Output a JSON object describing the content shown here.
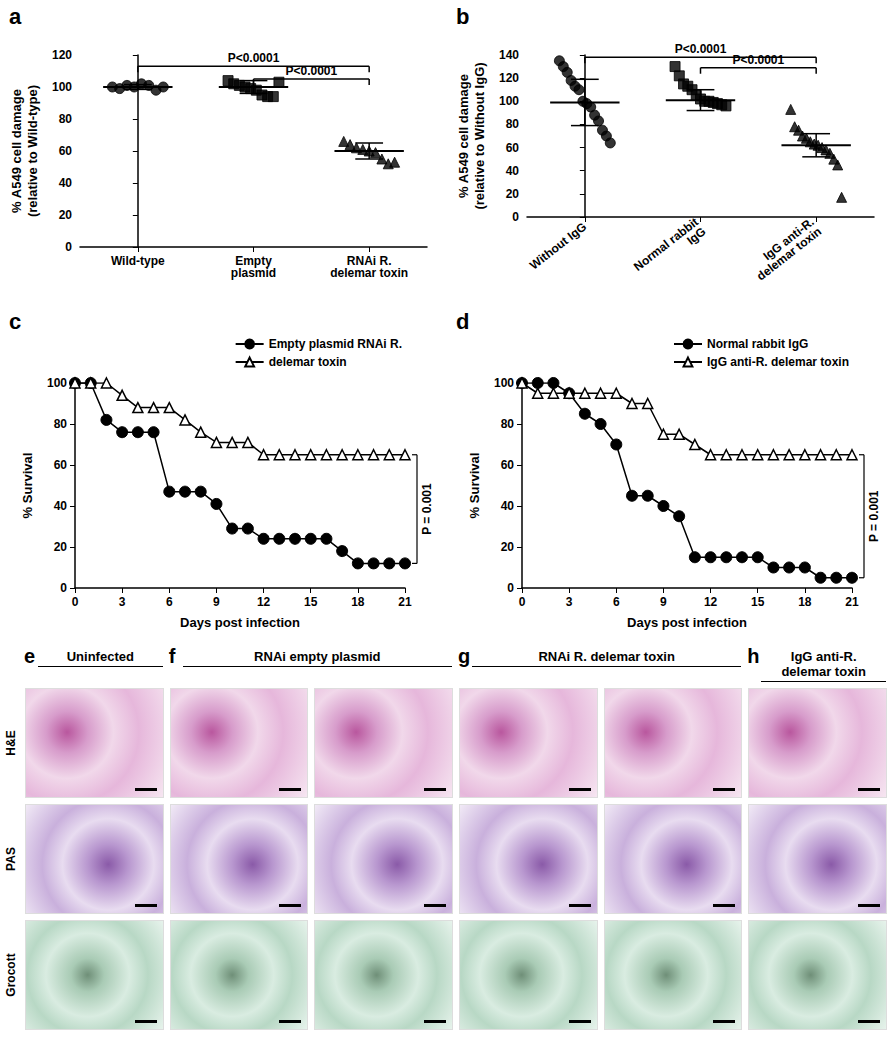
{
  "chart_data": [
    {
      "type": "scatter",
      "title": "a",
      "categories": [
        "Wild-type",
        "Empty\nplasmid",
        "RNAi R.\ndelemar toxin"
      ],
      "values": [
        [
          100,
          99,
          101,
          100,
          102,
          101,
          98,
          100
        ],
        [
          104,
          102,
          101,
          100,
          99,
          98,
          95,
          94,
          94,
          103
        ],
        [
          66,
          64,
          62,
          61,
          60,
          59,
          55,
          52,
          53
        ]
      ],
      "mean": [
        100,
        100,
        60
      ],
      "error": [
        1.5,
        4,
        5
      ],
      "markers": [
        "circle",
        "square",
        "triangle"
      ],
      "color": "#000000",
      "y_label": "% A549 cell damage\n(relative to Wild-type)",
      "ylim": [
        0,
        120
      ],
      "yticks": [
        0,
        20,
        40,
        60,
        80,
        100,
        120
      ],
      "annotations": [
        {
          "text": "P<0.0001",
          "from": "Wild-type",
          "to": "RNAi R.\ndelemar toxin",
          "y": 113
        },
        {
          "text": "P<0.0001",
          "from": "Empty\nplasmid",
          "to": "RNAi R.\ndelemar toxin",
          "y": 105
        }
      ]
    },
    {
      "type": "scatter",
      "title": "b",
      "categories": [
        "Without IgG",
        "Normal rabbit\nIgG",
        "IgG anti-R.\ndelemar toxin"
      ],
      "values": [
        [
          135,
          130,
          125,
          118,
          113,
          110,
          100,
          98,
          95,
          88,
          83,
          75,
          70,
          64
        ],
        [
          130,
          122,
          115,
          113,
          110,
          105,
          102,
          100,
          100,
          99,
          98,
          97,
          96
        ],
        [
          93,
          78,
          75,
          70,
          68,
          65,
          63,
          62,
          60,
          58,
          55,
          50,
          45,
          17
        ]
      ],
      "mean": [
        99,
        101,
        62
      ],
      "error": [
        20,
        9,
        10
      ],
      "markers": [
        "circle",
        "square",
        "triangle"
      ],
      "color": "#000000",
      "y_label": "% A549 cell damage\n(relative to Without IgG)",
      "ylim": [
        0,
        140
      ],
      "yticks": [
        0,
        20,
        40,
        60,
        80,
        100,
        120,
        140
      ],
      "annotations": [
        {
          "text": "P<0.0001",
          "from": "Without IgG",
          "to": "IgG anti-R.\ndelemar toxin",
          "y": 138
        },
        {
          "text": "P<0.0001",
          "from": "Normal rabbit\nIgG",
          "to": "IgG anti-R.\ndelemar toxin",
          "y": 129
        }
      ]
    },
    {
      "type": "line",
      "title": "c",
      "x": [
        0,
        1,
        2,
        3,
        4,
        5,
        6,
        7,
        8,
        9,
        10,
        11,
        12,
        13,
        14,
        15,
        16,
        17,
        18,
        19,
        20,
        21
      ],
      "series": [
        {
          "name": "Empty plasmid RNAi R.",
          "marker": "circle",
          "color": "#000000",
          "values": [
            100,
            100,
            82,
            76,
            76,
            76,
            47,
            47,
            47,
            41,
            29,
            29,
            24,
            24,
            24,
            24,
            24,
            18,
            12,
            12,
            12,
            12
          ]
        },
        {
          "name": "delemar toxin",
          "marker": "triangle-open",
          "color": "#000000",
          "values": [
            100,
            100,
            100,
            94,
            88,
            88,
            88,
            82,
            76,
            71,
            71,
            71,
            65,
            65,
            65,
            65,
            65,
            65,
            65,
            65,
            65,
            65
          ]
        }
      ],
      "x_label": "Days post infection",
      "y_label": "% Survival",
      "xlim": [
        0,
        21
      ],
      "xticks": [
        0,
        3,
        6,
        9,
        12,
        15,
        18,
        21
      ],
      "ylim": [
        0,
        100
      ],
      "yticks": [
        0,
        20,
        40,
        60,
        80,
        100
      ],
      "legend": "upper right",
      "annotations": [
        {
          "text": "P = 0.001",
          "from": 12,
          "to": 65
        }
      ]
    },
    {
      "type": "line",
      "title": "d",
      "x": [
        0,
        1,
        2,
        3,
        4,
        5,
        6,
        7,
        8,
        9,
        10,
        11,
        12,
        13,
        14,
        15,
        16,
        17,
        18,
        19,
        20,
        21
      ],
      "series": [
        {
          "name": "Normal rabbit IgG",
          "marker": "circle",
          "color": "#000000",
          "values": [
            100,
            100,
            100,
            95,
            85,
            80,
            70,
            45,
            45,
            40,
            35,
            15,
            15,
            15,
            15,
            15,
            10,
            10,
            10,
            5,
            5,
            5
          ]
        },
        {
          "name": "IgG anti-R. delemar toxin",
          "marker": "triangle-open",
          "color": "#000000",
          "values": [
            100,
            95,
            95,
            95,
            95,
            95,
            95,
            90,
            90,
            75,
            75,
            70,
            65,
            65,
            65,
            65,
            65,
            65,
            65,
            65,
            65,
            65
          ]
        }
      ],
      "x_label": "Days post infection",
      "y_label": "% Survival",
      "xlim": [
        0,
        21
      ],
      "xticks": [
        0,
        3,
        6,
        9,
        12,
        15,
        18,
        21
      ],
      "ylim": [
        0,
        100
      ],
      "yticks": [
        0,
        20,
        40,
        60,
        80,
        100
      ],
      "legend": "upper right",
      "annotations": [
        {
          "text": "P = 0.001",
          "from": 5,
          "to": 65
        }
      ]
    }
  ],
  "histology": {
    "rows": [
      "H&E",
      "PAS",
      "Grocott"
    ],
    "panels": [
      {
        "letter": "e",
        "title": "Uninfected",
        "columns": 1
      },
      {
        "letter": "f",
        "title": "RNAi empty plasmid",
        "columns": 2
      },
      {
        "letter": "g",
        "title": "RNAi R. delemar toxin",
        "columns": 2
      },
      {
        "letter": "h",
        "title": "IgG anti-R.\ndelemar toxin",
        "columns": 1
      }
    ]
  }
}
